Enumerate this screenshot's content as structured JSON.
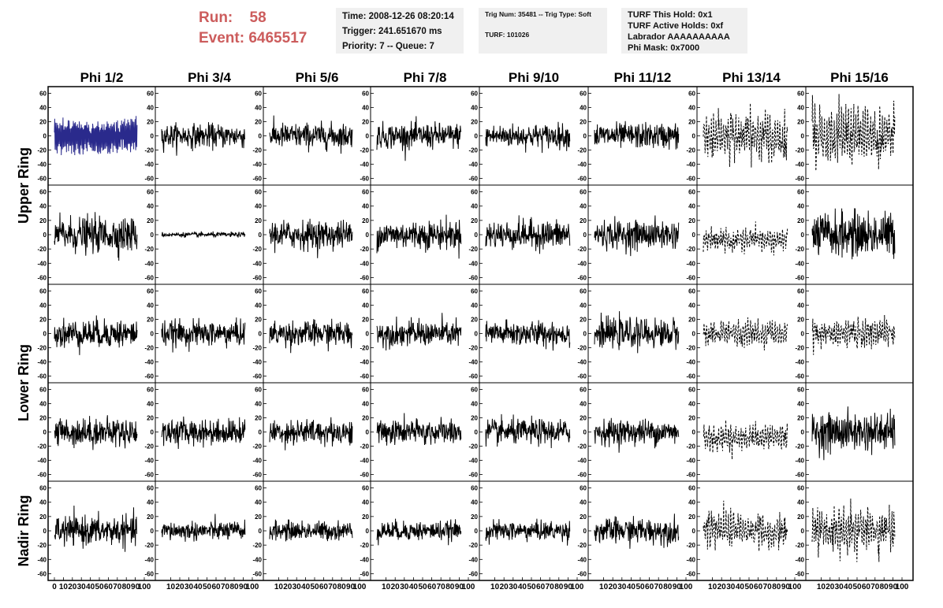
{
  "header": {
    "run_label": "Run:",
    "run_value": "58",
    "event_label": "Event:",
    "event_value": "6465517",
    "info1": [
      "Time: 2008-12-26 08:20:14",
      "Trigger: 241.651670 ms",
      "Priority: 7 -- Queue: 7"
    ],
    "info2": [
      "Trig Num: 35481 -- Trig Type: Soft",
      "",
      "TURF: 101026"
    ],
    "info3": [
      "TURF This Hold: 0x1",
      "TURF Active Holds: 0xf",
      "Labrador AAAAAAAAAA",
      "Phi Mask: 0x7000"
    ]
  },
  "chart_data": {
    "type": "line",
    "columns": [
      "Phi 1/2",
      "Phi 3/4",
      "Phi 5/6",
      "Phi 7/8",
      "Phi 9/10",
      "Phi 11/12",
      "Phi 13/14",
      "Phi 15/16"
    ],
    "rows": [
      "Upper Ring",
      "Upper Ring",
      "Lower Ring",
      "Lower Ring",
      "Nadir Ring"
    ],
    "row_labels": [
      {
        "label": "Upper Ring",
        "rows": [
          0,
          1
        ]
      },
      {
        "label": "Lower Ring",
        "rows": [
          2,
          3
        ]
      },
      {
        "label": "Nadir Ring",
        "rows": [
          4
        ]
      }
    ],
    "ylim": [
      -65,
      65
    ],
    "yticks": [
      -60,
      -40,
      -20,
      0,
      20,
      40,
      60
    ],
    "xlim": [
      0,
      100
    ],
    "xticks": [
      0,
      10,
      20,
      30,
      40,
      50,
      60,
      70,
      80,
      90,
      100
    ],
    "panel_amplitude": [
      [
        25,
        15,
        16,
        16,
        15,
        16,
        30,
        35
      ],
      [
        22,
        3,
        18,
        18,
        18,
        18,
        14,
        28
      ],
      [
        18,
        16,
        16,
        16,
        16,
        18,
        16,
        18
      ],
      [
        18,
        16,
        16,
        16,
        16,
        16,
        16,
        24
      ],
      [
        18,
        12,
        12,
        12,
        12,
        16,
        22,
        28
      ]
    ],
    "panel_style": [
      [
        "blue",
        "solid",
        "solid",
        "solid",
        "solid",
        "solid",
        "dashed",
        "dashed"
      ],
      [
        "solid",
        "solid",
        "solid",
        "solid",
        "solid",
        "solid",
        "dashed",
        "solid"
      ],
      [
        "solid",
        "solid",
        "solid",
        "solid",
        "solid",
        "solid",
        "dashed",
        "dashed"
      ],
      [
        "solid",
        "solid",
        "solid",
        "solid",
        "solid",
        "solid",
        "dashed",
        "solid"
      ],
      [
        "solid",
        "solid",
        "solid",
        "solid",
        "solid",
        "solid",
        "dashed",
        "dashed"
      ]
    ],
    "colors": {
      "blue": "#2a2a8c",
      "solid": "#000000",
      "dashed": "#000000"
    }
  }
}
